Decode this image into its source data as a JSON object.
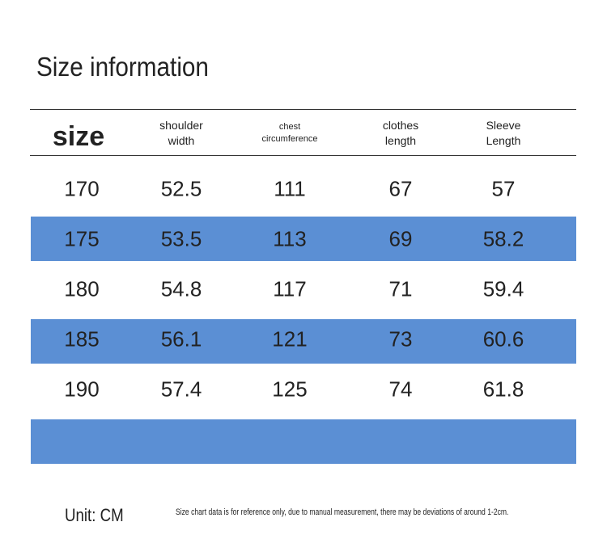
{
  "title": "Size information",
  "table": {
    "header": [
      [
        "size"
      ],
      [
        "shoulder",
        "width"
      ],
      [
        "chest",
        "circumference"
      ],
      [
        "clothes",
        "length"
      ],
      [
        "Sleeve",
        "Length"
      ]
    ],
    "rows": [
      [
        "170",
        "52.5",
        "111",
        "67",
        "57"
      ],
      [
        "175",
        "53.5",
        "113",
        "69",
        "58.2"
      ],
      [
        "180",
        "54.8",
        "117",
        "71",
        "59.4"
      ],
      [
        "185",
        "56.1",
        "121",
        "73",
        "60.6"
      ],
      [
        "190",
        "57.4",
        "125",
        "74",
        "61.8"
      ]
    ]
  },
  "footer": {
    "unit": "Unit: CM",
    "note": "Size chart data is for reference only, due to manual measurement, there may be deviations of around 1-2cm."
  }
}
